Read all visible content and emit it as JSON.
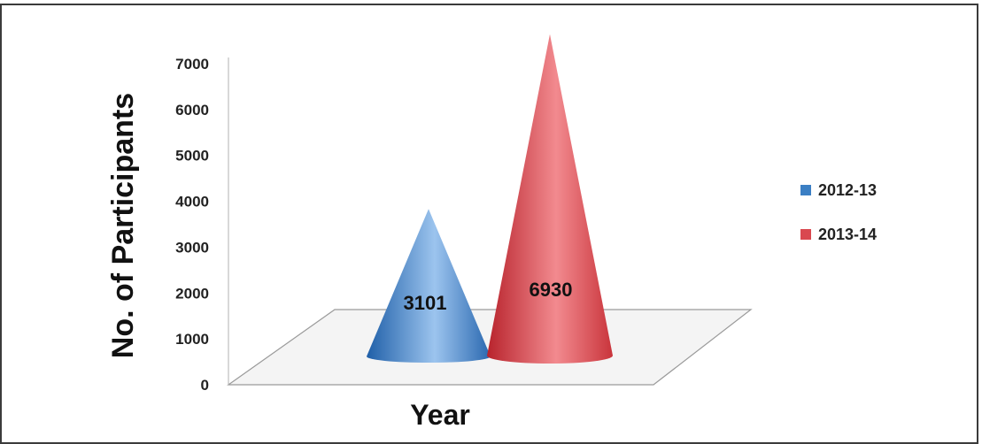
{
  "chart_data": {
    "type": "bar",
    "subtype": "3d-cone",
    "categories": [
      "2012-13",
      "2013-14"
    ],
    "values": [
      3101,
      6930
    ],
    "series": [
      {
        "name": "2012-13",
        "value": 3101,
        "color": "#3b7fc4"
      },
      {
        "name": "2013-14",
        "value": 6930,
        "color": "#d9484f"
      }
    ],
    "title": "",
    "xlabel": "Year",
    "ylabel": "No. of Participants",
    "ylim": [
      0,
      7000
    ],
    "yticks": [
      "0",
      "1000",
      "2000",
      "3000",
      "4000",
      "5000",
      "6000",
      "7000"
    ],
    "data_labels": [
      "3101",
      "6930"
    ],
    "grid": false,
    "legend_position": "right"
  }
}
